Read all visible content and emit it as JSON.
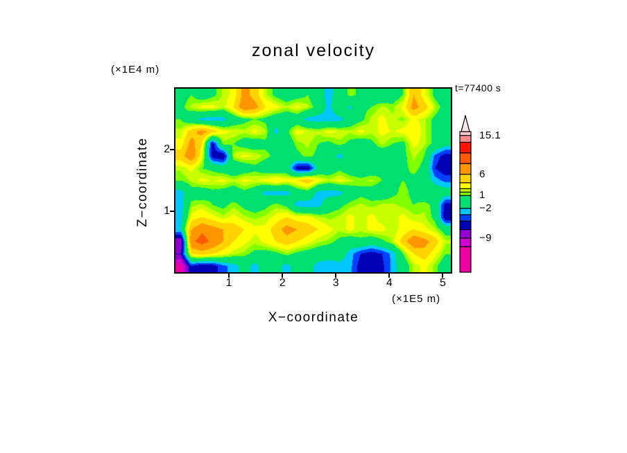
{
  "title": "zonal velocity",
  "time_label": "t=77400 s",
  "axes": {
    "x_label": "X−coordinate",
    "x_unit": "(×1E5 m)",
    "y_label": "Z−coordinate",
    "y_unit": "(×1E4 m)"
  },
  "chart_data": {
    "type": "heatmap",
    "title": "zonal velocity",
    "xlabel": "X-coordinate (×1E5 m)",
    "ylabel": "Z-coordinate (×1E4 m)",
    "time_annotation": "t=77400 s",
    "x_range": [
      0,
      5.15
    ],
    "z_range": [
      0,
      3
    ],
    "x_ticks": [
      1,
      2,
      3,
      4,
      5
    ],
    "z_ticks": [
      1,
      2
    ],
    "grid": false,
    "legend_position": "right-colorbar",
    "levels": [
      -11,
      -9,
      -7,
      -5,
      -3.5,
      -2,
      1,
      1.8,
      2.6,
      4,
      6,
      8.5,
      11,
      13.5,
      15.1
    ],
    "palette": [
      "#ec00a4",
      "#d000d0",
      "#9000d0",
      "#0000b4",
      "#0041ff",
      "#00c8ff",
      "#00e070",
      "#80ff00",
      "#c8ff00",
      "#ffff00",
      "#ffd200",
      "#ff9600",
      "#ff5a00",
      "#ff1400",
      "#ff8c8c",
      "#ffc8c8"
    ],
    "colorbar": {
      "v_min": -17,
      "v_max": 16,
      "tip_color": "#ffe6e6",
      "labels": [
        {
          "text": "15.1",
          "value": 15.1
        },
        {
          "text": "6",
          "value": 6
        },
        {
          "text": "1",
          "value": 1
        },
        {
          "text": "−2",
          "value": -2
        },
        {
          "text": "−9",
          "value": -9
        }
      ]
    },
    "grid_rows_top_to_bottom": true,
    "values": [
      [
        0,
        1,
        -0.5,
        0.5,
        2,
        3,
        7,
        5,
        2,
        0.5,
        -0.5,
        0,
        1,
        -1,
        -2.8,
        -0.5,
        1.5,
        0.5,
        -0.5,
        -1,
        -0.5,
        1,
        6,
        3,
        0.5,
        -1
      ],
      [
        0.5,
        2,
        3,
        3,
        2,
        4,
        8,
        7,
        4,
        3,
        2,
        3,
        2,
        0,
        -2.8,
        0.5,
        -2.5,
        0.5,
        1,
        2,
        1.5,
        3,
        7,
        5,
        2,
        0
      ],
      [
        1,
        -1,
        -2.8,
        -3,
        -2.8,
        -0.5,
        0.5,
        1,
        0.5,
        -0.5,
        -1,
        -0.5,
        -2.8,
        -3,
        -2.8,
        -2.8,
        -0.5,
        0.5,
        2,
        3,
        2,
        1.5,
        3,
        2,
        0.5,
        -0.5
      ],
      [
        2,
        5,
        7,
        5,
        3,
        2.5,
        2,
        3,
        2,
        -2.8,
        0.5,
        3,
        2.5,
        2,
        3,
        2.5,
        2,
        3,
        2,
        3,
        2.5,
        3,
        4,
        2,
        0.5,
        -0.5
      ],
      [
        3,
        7,
        4,
        -6,
        1.5,
        1,
        0,
        -0.5,
        0.5,
        0,
        -0.5,
        1.5,
        2,
        1,
        0.5,
        1.5,
        0.5,
        -0.5,
        0.5,
        2,
        1,
        0.5,
        3,
        2,
        0.5,
        -1
      ],
      [
        5,
        8,
        3,
        -6,
        -7,
        2,
        3,
        2.5,
        1.5,
        0.5,
        -0.5,
        0.5,
        1.5,
        0.5,
        -0.5,
        -2.8,
        -0.5,
        0.5,
        -0.5,
        -1,
        -0.5,
        0.5,
        2,
        1,
        -4,
        -6
      ],
      [
        2,
        3,
        1,
        0.5,
        -0.5,
        -1,
        -0.5,
        0.5,
        -0.5,
        -1,
        -0.5,
        -6,
        -6.5,
        -1,
        -0.5,
        0.5,
        -0.5,
        -1,
        -0.5,
        0.5,
        1,
        0.5,
        1.5,
        0.5,
        -5,
        -6.5
      ],
      [
        1,
        2,
        3,
        2.5,
        3,
        2,
        3,
        2.5,
        3,
        4,
        3,
        4,
        5.5,
        3,
        2,
        3,
        2,
        1.5,
        2,
        1,
        0.5,
        1,
        0.5,
        0,
        -2.8,
        -4
      ],
      [
        -2.8,
        0,
        -0.5,
        0.5,
        0,
        -0.5,
        0.5,
        -0.5,
        -2.8,
        -3,
        -2.8,
        -0.5,
        0,
        -2.8,
        -3,
        -2.8,
        -0.5,
        0.5,
        0,
        -0.5,
        0.5,
        1.5,
        0.5,
        -0.5,
        0,
        -0.5
      ],
      [
        -3,
        1.5,
        2,
        1,
        0.5,
        1.5,
        0.5,
        0,
        0.5,
        1.5,
        0.5,
        -2.8,
        -3,
        -2.8,
        0,
        0.5,
        1.5,
        2,
        1.5,
        2,
        2,
        1.5,
        1,
        1.5,
        0.5,
        -6
      ],
      [
        -2.8,
        3,
        4,
        3,
        2,
        3,
        2,
        1.5,
        2,
        3,
        4,
        3,
        3,
        2,
        1.5,
        2,
        3,
        2,
        3,
        2,
        2,
        3,
        2,
        2,
        0.5,
        -6.5
      ],
      [
        -2,
        6,
        8,
        7,
        6,
        5,
        4,
        3,
        3,
        5,
        7,
        6,
        5,
        4,
        3,
        2,
        3,
        2,
        3,
        3,
        2,
        3,
        4,
        3,
        2,
        0
      ],
      [
        -9,
        8,
        9.5,
        8,
        6,
        4,
        3,
        2,
        3,
        4,
        5,
        4,
        3,
        2,
        1.5,
        0.5,
        -0.5,
        0.5,
        -0.5,
        0.5,
        2,
        5,
        8,
        7,
        5,
        2
      ],
      [
        -7,
        4,
        5,
        4,
        3,
        2,
        1.5,
        0.5,
        0,
        0.5,
        1.5,
        0.5,
        0,
        -0.5,
        -1,
        -0.5,
        -2.8,
        -5,
        -6,
        -5,
        -3,
        1,
        4,
        5,
        3,
        1
      ],
      [
        -12,
        -5,
        -6.5,
        -6,
        -4,
        -2.8,
        -1,
        -2.8,
        -0.5,
        -1,
        -2.8,
        -0.5,
        -1,
        -2.8,
        -3,
        -2.8,
        -3,
        -6,
        -6.5,
        -5.5,
        -3,
        -0.5,
        2,
        3,
        1.5,
        -0.5
      ]
    ]
  }
}
